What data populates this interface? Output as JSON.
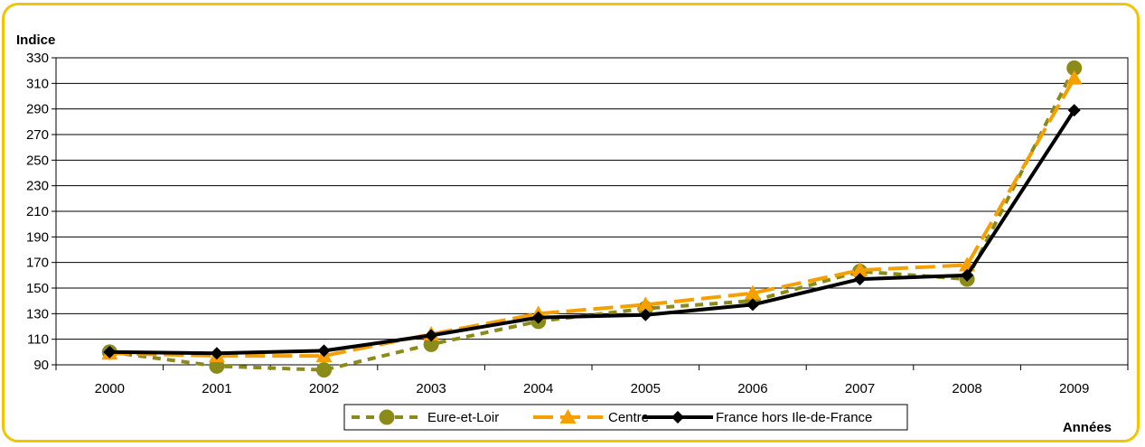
{
  "chart_data": {
    "type": "line",
    "ylabel": "Indice",
    "xlabel": "Années",
    "x": [
      "2000",
      "2001",
      "2002",
      "2003",
      "2004",
      "2005",
      "2006",
      "2007",
      "2008",
      "2009"
    ],
    "ylim": [
      90,
      330
    ],
    "yticks": [
      90,
      110,
      130,
      150,
      170,
      190,
      210,
      230,
      250,
      270,
      290,
      310,
      330
    ],
    "grid": true,
    "legend_position": "bottom",
    "series": [
      {
        "name": "Eure-et-Loir",
        "values": [
          100,
          89,
          86,
          106,
          124,
          134,
          140,
          163,
          157,
          322
        ],
        "color": "#8b8b1a",
        "dash": "dashed",
        "marker": "circle"
      },
      {
        "name": "Centre",
        "values": [
          99,
          97,
          97,
          114,
          130,
          137,
          146,
          164,
          168,
          314
        ],
        "color": "#f5a000",
        "dash": "long-dashed",
        "marker": "triangle"
      },
      {
        "name": "France hors Ile-de-France",
        "values": [
          100,
          99,
          101,
          113,
          127,
          129,
          137,
          157,
          160,
          289
        ],
        "color": "#000000",
        "dash": "solid",
        "marker": "diamond"
      }
    ]
  }
}
